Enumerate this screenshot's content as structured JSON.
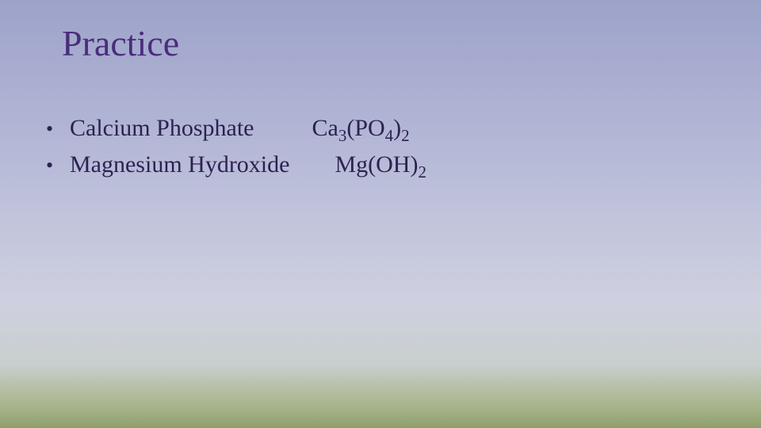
{
  "slide": {
    "title": "Practice",
    "title_color": "#4a2d7a",
    "title_fontsize": 46,
    "body_color": "#2d2152",
    "body_fontsize": 30,
    "background_gradient": [
      "#9da2c9",
      "#aeb2d3",
      "#c0c3db",
      "#ced0e0",
      "#c9cfce",
      "#a8b48a",
      "#8f9f6d"
    ],
    "items": [
      {
        "name": "Calcium Phosphate",
        "formula": {
          "base": "Ca",
          "sub1": "3",
          "mid": "(PO",
          "sub2": "4",
          "end": ")",
          "sub3": "2"
        }
      },
      {
        "name": "Magnesium Hydroxide",
        "formula": {
          "base": "Mg(OH)",
          "sub1": "2",
          "mid": "",
          "sub2": "",
          "end": "",
          "sub3": ""
        }
      }
    ],
    "bullet_char": "•"
  }
}
